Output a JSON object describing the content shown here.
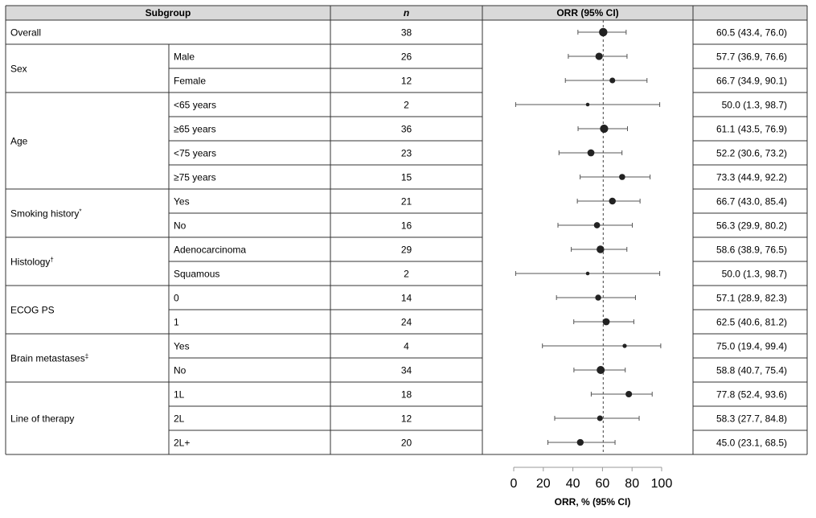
{
  "header": {
    "subgroup": "Subgroup",
    "n": "n",
    "orr": "ORR (95% CI)"
  },
  "groups": [
    {
      "label": "Overall",
      "note": "",
      "rows": [
        {
          "sub": ""
        }
      ]
    },
    {
      "label": "Sex",
      "note": "",
      "rows": [
        {
          "sub": "Male"
        },
        {
          "sub": "Female"
        }
      ]
    },
    {
      "label": "Age",
      "note": "",
      "rows": [
        {
          "sub": "<65 years"
        },
        {
          "sub": "≥65 years"
        },
        {
          "sub": "<75 years"
        },
        {
          "sub": "≥75 years"
        }
      ]
    },
    {
      "label": "Smoking history",
      "note": "*",
      "rows": [
        {
          "sub": "Yes"
        },
        {
          "sub": "No"
        }
      ]
    },
    {
      "label": "Histology",
      "note": "†",
      "rows": [
        {
          "sub": "Adenocarcinoma"
        },
        {
          "sub": "Squamous"
        }
      ]
    },
    {
      "label": "ECOG PS",
      "note": "",
      "rows": [
        {
          "sub": "0"
        },
        {
          "sub": "1"
        }
      ]
    },
    {
      "label": "Brain metastases",
      "note": "‡",
      "rows": [
        {
          "sub": "Yes"
        },
        {
          "sub": "No"
        }
      ]
    },
    {
      "label": "Line of therapy",
      "note": "",
      "rows": [
        {
          "sub": "1L"
        },
        {
          "sub": "2L"
        },
        {
          "sub": "2L+"
        }
      ]
    }
  ],
  "chart_data": {
    "type": "forest",
    "title": "",
    "xlabel": "ORR, % (95% CI)",
    "xlim": [
      0,
      100
    ],
    "xticks": [
      0,
      20,
      40,
      60,
      80,
      100
    ],
    "reference_line": 60.5,
    "rows": [
      {
        "n": 38,
        "orr": 60.5,
        "lo": 43.4,
        "hi": 76.0,
        "text": "60.5 (43.4, 76.0)"
      },
      {
        "n": 26,
        "orr": 57.7,
        "lo": 36.9,
        "hi": 76.6,
        "text": "57.7 (36.9, 76.6)"
      },
      {
        "n": 12,
        "orr": 66.7,
        "lo": 34.9,
        "hi": 90.1,
        "text": "66.7 (34.9, 90.1)"
      },
      {
        "n": 2,
        "orr": 50.0,
        "lo": 1.3,
        "hi": 98.7,
        "text": "50.0 (1.3, 98.7)"
      },
      {
        "n": 36,
        "orr": 61.1,
        "lo": 43.5,
        "hi": 76.9,
        "text": "61.1 (43.5, 76.9)"
      },
      {
        "n": 23,
        "orr": 52.2,
        "lo": 30.6,
        "hi": 73.2,
        "text": "52.2 (30.6, 73.2)"
      },
      {
        "n": 15,
        "orr": 73.3,
        "lo": 44.9,
        "hi": 92.2,
        "text": "73.3 (44.9, 92.2)"
      },
      {
        "n": 21,
        "orr": 66.7,
        "lo": 43.0,
        "hi": 85.4,
        "text": "66.7 (43.0, 85.4)"
      },
      {
        "n": 16,
        "orr": 56.3,
        "lo": 29.9,
        "hi": 80.2,
        "text": "56.3 (29.9, 80.2)"
      },
      {
        "n": 29,
        "orr": 58.6,
        "lo": 38.9,
        "hi": 76.5,
        "text": "58.6 (38.9, 76.5)"
      },
      {
        "n": 2,
        "orr": 50.0,
        "lo": 1.3,
        "hi": 98.7,
        "text": "50.0 (1.3, 98.7)"
      },
      {
        "n": 14,
        "orr": 57.1,
        "lo": 28.9,
        "hi": 82.3,
        "text": "57.1 (28.9, 82.3)"
      },
      {
        "n": 24,
        "orr": 62.5,
        "lo": 40.6,
        "hi": 81.2,
        "text": "62.5 (40.6, 81.2)"
      },
      {
        "n": 4,
        "orr": 75.0,
        "lo": 19.4,
        "hi": 99.4,
        "text": "75.0 (19.4, 99.4)"
      },
      {
        "n": 34,
        "orr": 58.8,
        "lo": 40.7,
        "hi": 75.4,
        "text": "58.8 (40.7, 75.4)"
      },
      {
        "n": 18,
        "orr": 77.8,
        "lo": 52.4,
        "hi": 93.6,
        "text": "77.8 (52.4, 93.6)"
      },
      {
        "n": 12,
        "orr": 58.3,
        "lo": 27.7,
        "hi": 84.8,
        "text": "58.3 (27.7, 84.8)"
      },
      {
        "n": 20,
        "orr": 45.0,
        "lo": 23.1,
        "hi": 68.5,
        "text": "45.0 (23.1, 68.5)"
      }
    ]
  },
  "colors": {
    "header_bg": "#d9d9d9",
    "marker": "#222222",
    "ci_line": "#555555",
    "border": "#333333",
    "ref_line": "#444444"
  }
}
